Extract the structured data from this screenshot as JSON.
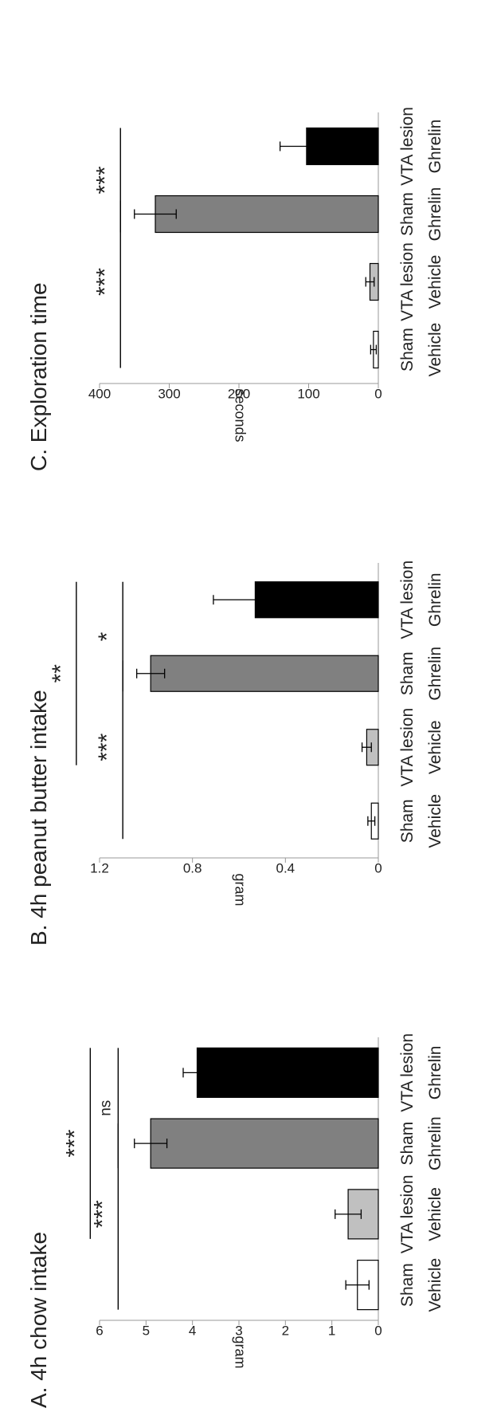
{
  "chart_data": [
    {
      "type": "bar",
      "title": "A. 4h chow intake",
      "ylabel": "gram",
      "ylim": [
        0,
        6
      ],
      "yticks": [
        0,
        1,
        2,
        3,
        4,
        5,
        6
      ],
      "categories": [
        {
          "line1": "Sham",
          "line2": "Vehicle"
        },
        {
          "line1": "VTA lesion",
          "line2": "Vehicle"
        },
        {
          "line1": "Sham",
          "line2": "Ghrelin"
        },
        {
          "line1": "VTA lesion",
          "line2": "Ghrelin"
        }
      ],
      "values": [
        0.45,
        0.65,
        4.9,
        3.9
      ],
      "errors": [
        0.25,
        0.28,
        0.35,
        0.3
      ],
      "colors": [
        "#ffffff",
        "#c0c0c0",
        "#808080",
        "#000000"
      ],
      "significance": [
        {
          "from": 0,
          "to": 2,
          "label": "***",
          "y": 5.6
        },
        {
          "from": 2,
          "to": 3,
          "label": "ns",
          "y": 5.6
        },
        {
          "from": 1,
          "to": 3,
          "label": "***",
          "y": 6.2
        }
      ]
    },
    {
      "type": "bar",
      "title": "B. 4h peanut butter intake",
      "ylabel": "gram",
      "ylim": [
        0,
        1.2
      ],
      "yticks": [
        0,
        0.4,
        0.8,
        1.2
      ],
      "categories": [
        {
          "line1": "Sham",
          "line2": "Vehicle"
        },
        {
          "line1": "VTA lesion",
          "line2": "Vehicle"
        },
        {
          "line1": "Sham",
          "line2": "Ghrelin"
        },
        {
          "line1": "VTA lesion",
          "line2": "Ghrelin"
        }
      ],
      "values": [
        0.03,
        0.05,
        0.98,
        0.53
      ],
      "errors": [
        0.015,
        0.02,
        0.06,
        0.18
      ],
      "colors": [
        "#ffffff",
        "#c0c0c0",
        "#808080",
        "#000000"
      ],
      "significance": [
        {
          "from": 0,
          "to": 2,
          "label": "***",
          "y": 1.1
        },
        {
          "from": 2,
          "to": 3,
          "label": "*",
          "y": 1.1
        },
        {
          "from": 1,
          "to": 3,
          "label": "**",
          "y": 1.3
        }
      ]
    },
    {
      "type": "bar",
      "title": "C. Exploration time",
      "ylabel": "seconds",
      "ylim": [
        0,
        400
      ],
      "yticks": [
        0,
        100,
        200,
        300,
        400
      ],
      "categories": [
        {
          "line1": "Sham",
          "line2": "Vehicle"
        },
        {
          "line1": "VTA lesion",
          "line2": "Vehicle"
        },
        {
          "line1": "Sham",
          "line2": "Ghrelin"
        },
        {
          "line1": "VTA lesion",
          "line2": "Ghrelin"
        }
      ],
      "values": [
        7,
        12,
        320,
        103
      ],
      "errors": [
        4,
        6,
        30,
        38
      ],
      "colors": [
        "#ffffff",
        "#c0c0c0",
        "#808080",
        "#000000"
      ],
      "significance": [
        {
          "from": 0,
          "to": 2,
          "label": "***",
          "y": 370
        },
        {
          "from": 2,
          "to": 3,
          "label": "***",
          "y": 370
        }
      ]
    }
  ]
}
